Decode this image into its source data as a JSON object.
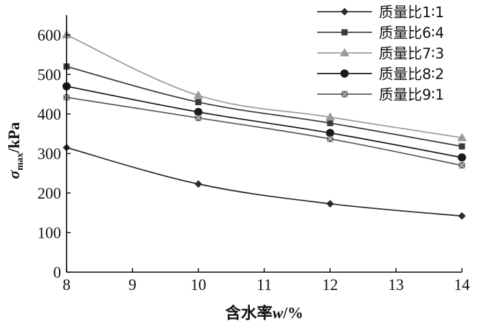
{
  "chart_data": {
    "type": "line",
    "xlabel_main": "含水率",
    "xlabel_var": "w",
    "xlabel_unit": "/%",
    "ylabel_sym": "σ",
    "ylabel_sub": "max",
    "ylabel_unit": "/kPa",
    "xlim": [
      8,
      14
    ],
    "ylim": [
      0,
      650
    ],
    "xticks": [
      8,
      9,
      10,
      11,
      12,
      13,
      14
    ],
    "yticks": [
      0,
      100,
      200,
      300,
      400,
      500,
      600
    ],
    "grid": false,
    "legend_position": "top-right",
    "x": [
      8,
      10,
      12,
      14
    ],
    "series": [
      {
        "name": "质量比1∶1",
        "marker": "diamond",
        "color": "#2a2a2a",
        "values": [
          315,
          223,
          173,
          142
        ]
      },
      {
        "name": "质量比6∶4",
        "marker": "square",
        "color": "#3a3a3a",
        "values": [
          520,
          430,
          377,
          318
        ]
      },
      {
        "name": "质量比7∶3",
        "marker": "triangle",
        "color": "#9a9a9a",
        "values": [
          600,
          447,
          392,
          340
        ]
      },
      {
        "name": "质量比8∶2",
        "marker": "circle",
        "color": "#1a1a1a",
        "values": [
          470,
          405,
          352,
          290
        ]
      },
      {
        "name": "质量比9∶1",
        "marker": "x-square",
        "color": "#5a5a5a",
        "values": [
          442,
          390,
          337,
          270
        ]
      }
    ]
  }
}
